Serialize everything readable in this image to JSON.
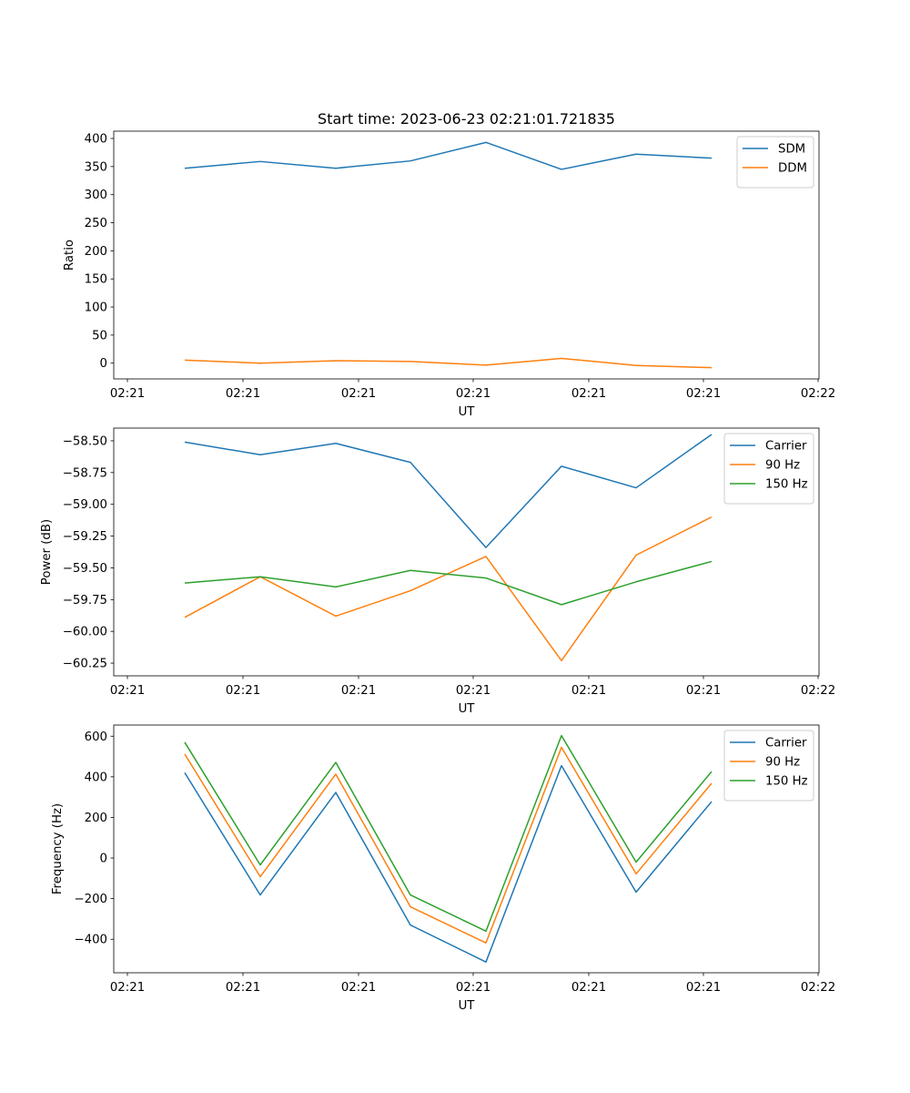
{
  "chart_data": [
    {
      "type": "line",
      "title": "Start time: 2023-06-23 02:21:01.721835",
      "xlabel": "UT",
      "ylabel": "Ratio",
      "x_ticks": [
        "02:21",
        "02:21",
        "02:21",
        "02:21",
        "02:21",
        "02:21",
        "02:21"
      ],
      "x_last_tick": "02:22",
      "ylim": [
        -28,
        413
      ],
      "y_ticks": [
        0,
        50,
        100,
        150,
        200,
        250,
        300,
        350,
        400
      ],
      "legend_position": "upper right",
      "series": [
        {
          "name": "SDM",
          "color": "#1f77b4",
          "values": [
            347,
            359,
            347,
            360,
            393,
            345,
            372,
            365
          ]
        },
        {
          "name": "DDM",
          "color": "#ff7f0e",
          "values": [
            5.5,
            0,
            4.5,
            3,
            -3.5,
            8.5,
            -4,
            -8
          ]
        }
      ]
    },
    {
      "type": "line",
      "title": "",
      "xlabel": "UT",
      "ylabel": "Power (dB)",
      "x_ticks": [
        "02:21",
        "02:21",
        "02:21",
        "02:21",
        "02:21",
        "02:21",
        "02:21"
      ],
      "x_last_tick": "02:22",
      "ylim": [
        -60.35,
        -58.4
      ],
      "y_ticks": [
        -60.25,
        -60.0,
        -59.75,
        -59.5,
        -59.25,
        -59.0,
        -58.75,
        -58.5
      ],
      "y_tick_labels": [
        "−60.25",
        "−60.00",
        "−59.75",
        "−59.50",
        "−59.25",
        "−59.00",
        "−58.75",
        "−58.50"
      ],
      "legend_position": "upper right",
      "series": [
        {
          "name": "Carrier",
          "color": "#1f77b4",
          "values": [
            -58.51,
            -58.61,
            -58.52,
            -58.67,
            -59.34,
            -58.7,
            -58.87,
            -58.45
          ]
        },
        {
          "name": "90 Hz",
          "color": "#ff7f0e",
          "values": [
            -59.89,
            -59.57,
            -59.88,
            -59.68,
            -59.41,
            -60.23,
            -59.4,
            -59.1
          ]
        },
        {
          "name": "150 Hz",
          "color": "#2ca02c",
          "values": [
            -59.62,
            -59.57,
            -59.65,
            -59.52,
            -59.58,
            -59.79,
            -59.61,
            -59.45
          ]
        }
      ]
    },
    {
      "type": "line",
      "title": "",
      "xlabel": "UT",
      "ylabel": "Frequency (Hz)",
      "x_ticks": [
        "02:21",
        "02:21",
        "02:21",
        "02:21",
        "02:21",
        "02:21",
        "02:21"
      ],
      "x_last_tick": "02:22",
      "ylim": [
        -565,
        655
      ],
      "y_ticks": [
        -400,
        -200,
        0,
        200,
        400,
        600
      ],
      "y_tick_labels": [
        "−400",
        "−200",
        "0",
        "200",
        "400",
        "600"
      ],
      "legend_position": "upper right",
      "series": [
        {
          "name": "Carrier",
          "color": "#1f77b4",
          "values": [
            420,
            -182,
            323,
            -330,
            -512,
            455,
            -168,
            278
          ]
        },
        {
          "name": "90 Hz",
          "color": "#ff7f0e",
          "values": [
            512,
            -92,
            413,
            -240,
            -418,
            545,
            -78,
            368
          ]
        },
        {
          "name": "150 Hz",
          "color": "#2ca02c",
          "values": [
            570,
            -34,
            471,
            -182,
            -360,
            603,
            -20,
            426
          ]
        }
      ]
    }
  ]
}
